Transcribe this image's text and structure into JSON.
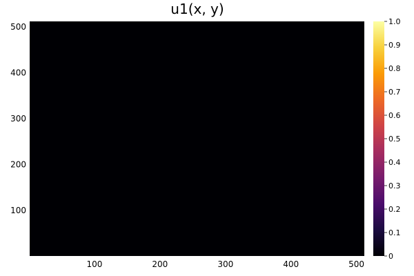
{
  "chart_data": {
    "type": "heatmap",
    "title": "u1(x, y)",
    "xlabel": "",
    "ylabel": "",
    "xlim": [
      1,
      512
    ],
    "ylim": [
      1,
      512
    ],
    "x_ticks": [
      100,
      200,
      300,
      400,
      500
    ],
    "y_ticks": [
      100,
      200,
      300,
      400,
      500
    ],
    "values": "all 0 (uniform field)",
    "uniform_value": 0,
    "colorbar": {
      "colormap": "inferno",
      "range": [
        0,
        1
      ],
      "ticks": [
        "0",
        "0.1",
        "0.2",
        "0.3",
        "0.4",
        "0.5",
        "0.6",
        "0.7",
        "0.8",
        "0.9",
        "1.0"
      ]
    },
    "colors": {
      "field": "#000004",
      "inferno_stops": [
        "#000004",
        "#1b0c41",
        "#4a0c6b",
        "#781c6d",
        "#a52c60",
        "#cf4446",
        "#ed6925",
        "#fb9b06",
        "#f7d13d",
        "#fcffa4"
      ]
    },
    "grid": false,
    "legend": "colorbar-right"
  }
}
